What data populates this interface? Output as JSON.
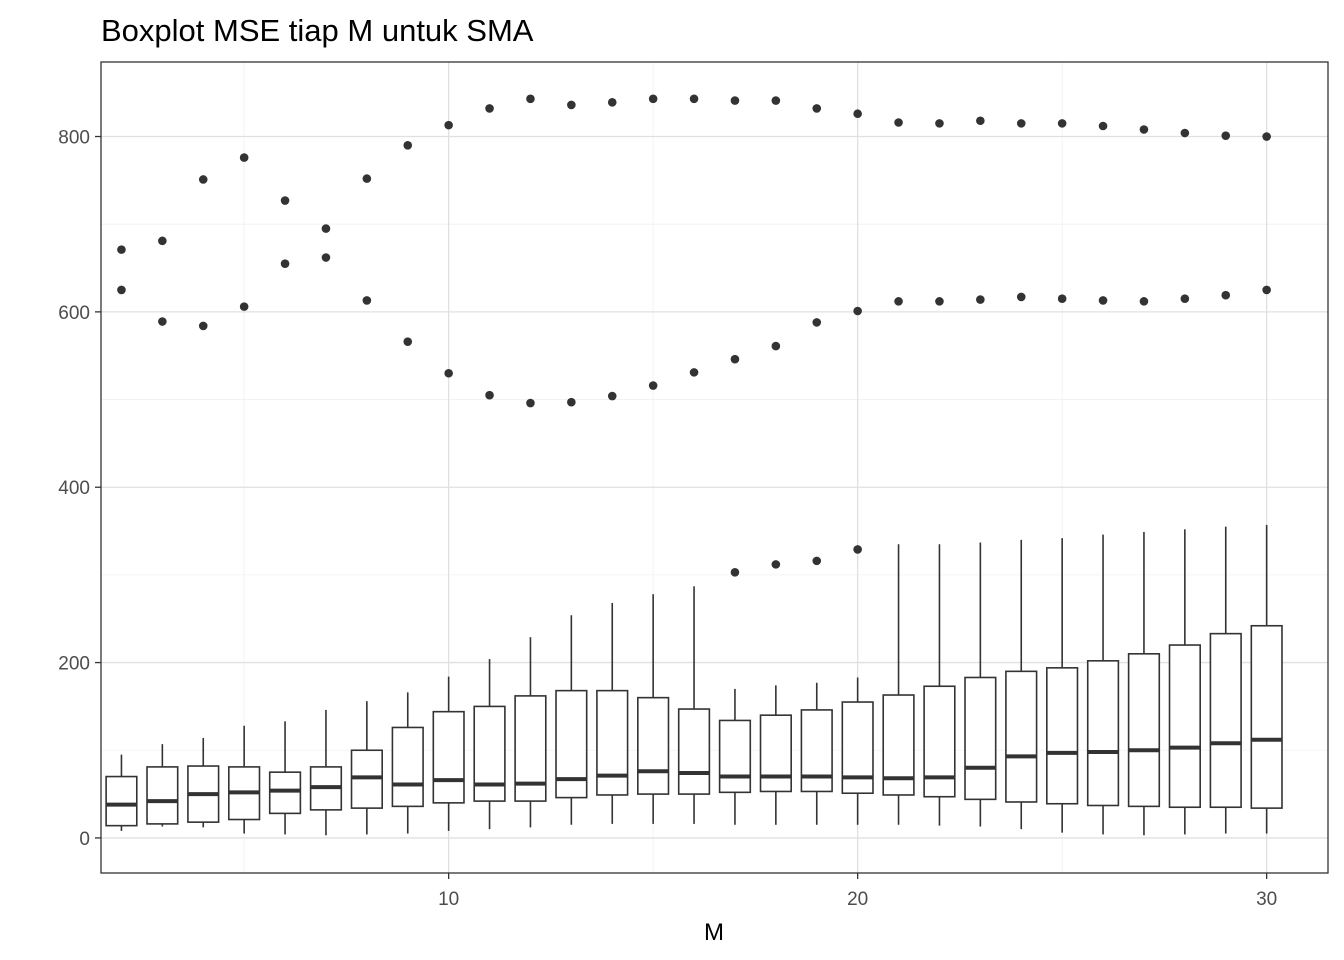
{
  "chart_data": {
    "type": "boxplot",
    "title": "Boxplot MSE tiap M untuk SMA",
    "xlabel": "M",
    "ylabel": "",
    "xlim": [
      1.5,
      31.5
    ],
    "ylim": [
      -40,
      885
    ],
    "x_ticks": [
      10,
      20,
      30
    ],
    "y_ticks": [
      0,
      200,
      400,
      600,
      800
    ],
    "grid": true,
    "colors": {
      "box_stroke": "#333333",
      "point": "#333333",
      "grid_major": "#e0e0e0",
      "grid_minor": "#f0f0f0",
      "panel_border": "#333333"
    },
    "boxes": [
      {
        "m": 2,
        "whisker_low": 8,
        "q1": 14,
        "median": 38,
        "q3": 70,
        "whisker_high": 95,
        "outliers": [
          625,
          671
        ]
      },
      {
        "m": 3,
        "whisker_low": 13,
        "q1": 16,
        "median": 42,
        "q3": 81,
        "whisker_high": 107,
        "outliers": [
          589,
          681
        ]
      },
      {
        "m": 4,
        "whisker_low": 12,
        "q1": 18,
        "median": 50,
        "q3": 82,
        "whisker_high": 114,
        "outliers": [
          584,
          751
        ]
      },
      {
        "m": 5,
        "whisker_low": 5,
        "q1": 21,
        "median": 52,
        "q3": 81,
        "whisker_high": 128,
        "outliers": [
          606,
          776
        ]
      },
      {
        "m": 6,
        "whisker_low": 4,
        "q1": 28,
        "median": 54,
        "q3": 75,
        "whisker_high": 133,
        "outliers": [
          655,
          727
        ]
      },
      {
        "m": 7,
        "whisker_low": 3,
        "q1": 32,
        "median": 58,
        "q3": 81,
        "whisker_high": 146,
        "outliers": [
          662,
          695
        ]
      },
      {
        "m": 8,
        "whisker_low": 4,
        "q1": 34,
        "median": 69,
        "q3": 100,
        "whisker_high": 156,
        "outliers": [
          613,
          752
        ]
      },
      {
        "m": 9,
        "whisker_low": 5,
        "q1": 36,
        "median": 61,
        "q3": 126,
        "whisker_high": 166,
        "outliers": [
          566,
          790
        ]
      },
      {
        "m": 10,
        "whisker_low": 8,
        "q1": 40,
        "median": 66,
        "q3": 144,
        "whisker_high": 184,
        "outliers": [
          530,
          813
        ]
      },
      {
        "m": 11,
        "whisker_low": 10,
        "q1": 42,
        "median": 61,
        "q3": 150,
        "whisker_high": 204,
        "outliers": [
          505,
          832
        ]
      },
      {
        "m": 12,
        "whisker_low": 12,
        "q1": 42,
        "median": 62,
        "q3": 162,
        "whisker_high": 229,
        "outliers": [
          496,
          843
        ]
      },
      {
        "m": 13,
        "whisker_low": 15,
        "q1": 46,
        "median": 67,
        "q3": 168,
        "whisker_high": 254,
        "outliers": [
          497,
          836
        ]
      },
      {
        "m": 14,
        "whisker_low": 16,
        "q1": 49,
        "median": 71,
        "q3": 168,
        "whisker_high": 268,
        "outliers": [
          504,
          839
        ]
      },
      {
        "m": 15,
        "whisker_low": 16,
        "q1": 50,
        "median": 76,
        "q3": 160,
        "whisker_high": 278,
        "outliers": [
          516,
          843
        ]
      },
      {
        "m": 16,
        "whisker_low": 16,
        "q1": 50,
        "median": 74,
        "q3": 147,
        "whisker_high": 287,
        "outliers": [
          531,
          843
        ]
      },
      {
        "m": 17,
        "whisker_low": 15,
        "q1": 52,
        "median": 70,
        "q3": 134,
        "whisker_high": 170,
        "outliers": [
          303,
          546,
          841
        ]
      },
      {
        "m": 18,
        "whisker_low": 15,
        "q1": 53,
        "median": 70,
        "q3": 140,
        "whisker_high": 174,
        "outliers": [
          312,
          561,
          841
        ]
      },
      {
        "m": 19,
        "whisker_low": 15,
        "q1": 53,
        "median": 70,
        "q3": 146,
        "whisker_high": 177,
        "outliers": [
          316,
          588,
          832
        ]
      },
      {
        "m": 20,
        "whisker_low": 15,
        "q1": 51,
        "median": 69,
        "q3": 155,
        "whisker_high": 183,
        "outliers": [
          329,
          601,
          826
        ]
      },
      {
        "m": 21,
        "whisker_low": 15,
        "q1": 49,
        "median": 68,
        "q3": 163,
        "whisker_high": 335,
        "outliers": [
          612,
          816
        ]
      },
      {
        "m": 22,
        "whisker_low": 14,
        "q1": 47,
        "median": 69,
        "q3": 173,
        "whisker_high": 335,
        "outliers": [
          612,
          815
        ]
      },
      {
        "m": 23,
        "whisker_low": 13,
        "q1": 44,
        "median": 80,
        "q3": 183,
        "whisker_high": 337,
        "outliers": [
          614,
          818
        ]
      },
      {
        "m": 24,
        "whisker_low": 10,
        "q1": 41,
        "median": 93,
        "q3": 190,
        "whisker_high": 340,
        "outliers": [
          617,
          815
        ]
      },
      {
        "m": 25,
        "whisker_low": 6,
        "q1": 39,
        "median": 97,
        "q3": 194,
        "whisker_high": 342,
        "outliers": [
          615,
          815
        ]
      },
      {
        "m": 26,
        "whisker_low": 4,
        "q1": 37,
        "median": 98,
        "q3": 202,
        "whisker_high": 346,
        "outliers": [
          613,
          812
        ]
      },
      {
        "m": 27,
        "whisker_low": 3,
        "q1": 36,
        "median": 100,
        "q3": 210,
        "whisker_high": 349,
        "outliers": [
          612,
          808
        ]
      },
      {
        "m": 28,
        "whisker_low": 4,
        "q1": 35,
        "median": 103,
        "q3": 220,
        "whisker_high": 352,
        "outliers": [
          615,
          804
        ]
      },
      {
        "m": 29,
        "whisker_low": 5,
        "q1": 35,
        "median": 108,
        "q3": 233,
        "whisker_high": 355,
        "outliers": [
          619,
          801
        ]
      },
      {
        "m": 30,
        "whisker_low": 5,
        "q1": 34,
        "median": 112,
        "q3": 242,
        "whisker_high": 357,
        "outliers": [
          625,
          800
        ]
      }
    ]
  }
}
